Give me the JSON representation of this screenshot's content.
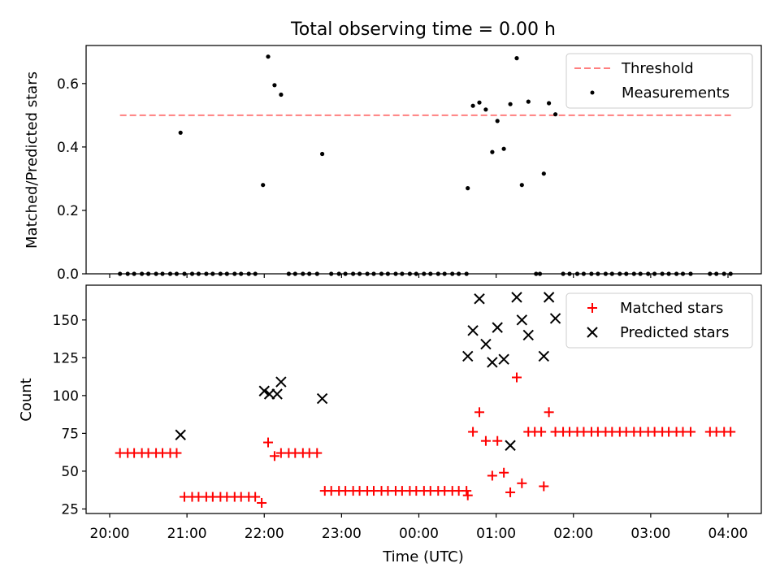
{
  "chart_data": [
    {
      "type": "scatter",
      "title": "Total observing time = 0.00 h",
      "ylabel": "Matched/Predicted stars",
      "xlabel": "",
      "ylim": [
        0.0,
        0.72
      ],
      "yticks": [
        "0.0",
        "0.2",
        "0.4",
        "0.6"
      ],
      "grid": false,
      "legend_position": "top-right",
      "threshold": {
        "name": "Threshold",
        "value": 0.5,
        "x_range": [
          "20:08",
          "04:03"
        ],
        "color": "#ff7f7f"
      },
      "series": [
        {
          "name": "Measurements",
          "color": "#000000",
          "points": [
            [
              "20:08",
              0
            ],
            [
              "20:14",
              0
            ],
            [
              "20:19",
              0
            ],
            [
              "20:25",
              0
            ],
            [
              "20:30",
              0
            ],
            [
              "20:36",
              0
            ],
            [
              "20:41",
              0
            ],
            [
              "20:47",
              0
            ],
            [
              "20:52",
              0
            ],
            [
              "20:58",
              0
            ],
            [
              "20:55",
              0.445
            ],
            [
              "21:04",
              0
            ],
            [
              "21:09",
              0
            ],
            [
              "21:15",
              0
            ],
            [
              "21:20",
              0
            ],
            [
              "21:26",
              0
            ],
            [
              "21:31",
              0
            ],
            [
              "21:37",
              0
            ],
            [
              "21:42",
              0
            ],
            [
              "21:48",
              0
            ],
            [
              "21:53",
              0
            ],
            [
              "21:59",
              0.28
            ],
            [
              "22:03",
              0.685
            ],
            [
              "22:08",
              0.595
            ],
            [
              "22:13",
              0.565
            ],
            [
              "22:19",
              0
            ],
            [
              "22:24",
              0
            ],
            [
              "22:30",
              0
            ],
            [
              "22:35",
              0
            ],
            [
              "22:41",
              0
            ],
            [
              "22:45",
              0.378
            ],
            [
              "22:52",
              0
            ],
            [
              "22:58",
              0
            ],
            [
              "23:03",
              0
            ],
            [
              "23:09",
              0
            ],
            [
              "23:14",
              0
            ],
            [
              "23:20",
              0
            ],
            [
              "23:25",
              0
            ],
            [
              "23:31",
              0
            ],
            [
              "23:36",
              0
            ],
            [
              "23:42",
              0
            ],
            [
              "23:47",
              0
            ],
            [
              "23:53",
              0
            ],
            [
              "23:58",
              0
            ],
            [
              "00:04",
              0
            ],
            [
              "00:09",
              0
            ],
            [
              "00:15",
              0
            ],
            [
              "00:20",
              0
            ],
            [
              "00:26",
              0
            ],
            [
              "00:31",
              0
            ],
            [
              "00:37",
              0
            ],
            [
              "00:38",
              0.27
            ],
            [
              "00:42",
              0.53
            ],
            [
              "00:47",
              0.54
            ],
            [
              "00:52",
              0.518
            ],
            [
              "00:57",
              0.384
            ],
            [
              "01:01",
              0.482
            ],
            [
              "01:06",
              0.394
            ],
            [
              "01:11",
              0.535
            ],
            [
              "01:16",
              0.68
            ],
            [
              "01:20",
              0.28
            ],
            [
              "01:25",
              0.543
            ],
            [
              "01:31",
              0
            ],
            [
              "01:34",
              0
            ],
            [
              "01:37",
              0.316
            ],
            [
              "01:41",
              0.538
            ],
            [
              "01:46",
              0.503
            ],
            [
              "01:52",
              0
            ],
            [
              "01:57",
              0
            ],
            [
              "02:03",
              0
            ],
            [
              "02:08",
              0
            ],
            [
              "02:14",
              0
            ],
            [
              "02:19",
              0
            ],
            [
              "02:25",
              0
            ],
            [
              "02:30",
              0
            ],
            [
              "02:36",
              0
            ],
            [
              "02:41",
              0
            ],
            [
              "02:47",
              0
            ],
            [
              "02:52",
              0
            ],
            [
              "02:58",
              0
            ],
            [
              "03:03",
              0
            ],
            [
              "03:09",
              0
            ],
            [
              "03:14",
              0
            ],
            [
              "03:20",
              0
            ],
            [
              "03:25",
              0
            ],
            [
              "03:31",
              0
            ],
            [
              "03:46",
              0
            ],
            [
              "03:51",
              0
            ],
            [
              "03:57",
              0
            ],
            [
              "04:02",
              0
            ]
          ]
        }
      ]
    },
    {
      "type": "scatter",
      "title": "",
      "ylabel": "Count",
      "xlabel": "Time (UTC)",
      "ylim": [
        22,
        173
      ],
      "yticks": [
        "25",
        "50",
        "75",
        "100",
        "125",
        "150"
      ],
      "xticks": [
        "20:00",
        "21:00",
        "22:00",
        "23:00",
        "00:00",
        "01:00",
        "02:00",
        "03:00",
        "04:00"
      ],
      "grid": false,
      "legend_position": "top-right",
      "series": [
        {
          "name": "Matched stars",
          "marker": "+",
          "color": "#ff0000",
          "points": [
            [
              "20:08",
              62
            ],
            [
              "20:14",
              62
            ],
            [
              "20:19",
              62
            ],
            [
              "20:25",
              62
            ],
            [
              "20:30",
              62
            ],
            [
              "20:36",
              62
            ],
            [
              "20:41",
              62
            ],
            [
              "20:47",
              62
            ],
            [
              "20:52",
              62
            ],
            [
              "20:58",
              33
            ],
            [
              "21:04",
              33
            ],
            [
              "21:09",
              33
            ],
            [
              "21:15",
              33
            ],
            [
              "21:20",
              33
            ],
            [
              "21:26",
              33
            ],
            [
              "21:31",
              33
            ],
            [
              "21:37",
              33
            ],
            [
              "21:42",
              33
            ],
            [
              "21:48",
              33
            ],
            [
              "21:53",
              33
            ],
            [
              "21:58",
              29
            ],
            [
              "22:03",
              69
            ],
            [
              "22:08",
              60
            ],
            [
              "22:13",
              62
            ],
            [
              "22:19",
              62
            ],
            [
              "22:24",
              62
            ],
            [
              "22:30",
              62
            ],
            [
              "22:35",
              62
            ],
            [
              "22:41",
              62
            ],
            [
              "22:47",
              37
            ],
            [
              "22:52",
              37
            ],
            [
              "22:58",
              37
            ],
            [
              "23:03",
              37
            ],
            [
              "23:09",
              37
            ],
            [
              "23:14",
              37
            ],
            [
              "23:20",
              37
            ],
            [
              "23:25",
              37
            ],
            [
              "23:31",
              37
            ],
            [
              "23:36",
              37
            ],
            [
              "23:42",
              37
            ],
            [
              "23:47",
              37
            ],
            [
              "23:53",
              37
            ],
            [
              "23:58",
              37
            ],
            [
              "00:04",
              37
            ],
            [
              "00:09",
              37
            ],
            [
              "00:15",
              37
            ],
            [
              "00:20",
              37
            ],
            [
              "00:26",
              37
            ],
            [
              "00:31",
              37
            ],
            [
              "00:37",
              37
            ],
            [
              "00:38",
              34
            ],
            [
              "00:42",
              76
            ],
            [
              "00:47",
              89
            ],
            [
              "00:52",
              70
            ],
            [
              "00:57",
              47
            ],
            [
              "01:01",
              70
            ],
            [
              "01:06",
              49
            ],
            [
              "01:11",
              36
            ],
            [
              "01:16",
              112
            ],
            [
              "01:20",
              42
            ],
            [
              "01:25",
              76
            ],
            [
              "01:30",
              76
            ],
            [
              "01:35",
              76
            ],
            [
              "01:41",
              89
            ],
            [
              "01:37",
              40
            ],
            [
              "01:46",
              76
            ],
            [
              "01:52",
              76
            ],
            [
              "01:57",
              76
            ],
            [
              "02:03",
              76
            ],
            [
              "02:08",
              76
            ],
            [
              "02:14",
              76
            ],
            [
              "02:19",
              76
            ],
            [
              "02:25",
              76
            ],
            [
              "02:30",
              76
            ],
            [
              "02:36",
              76
            ],
            [
              "02:41",
              76
            ],
            [
              "02:47",
              76
            ],
            [
              "02:52",
              76
            ],
            [
              "02:58",
              76
            ],
            [
              "03:03",
              76
            ],
            [
              "03:09",
              76
            ],
            [
              "03:14",
              76
            ],
            [
              "03:20",
              76
            ],
            [
              "03:25",
              76
            ],
            [
              "03:31",
              76
            ],
            [
              "03:46",
              76
            ],
            [
              "03:51",
              76
            ],
            [
              "03:57",
              76
            ],
            [
              "04:02",
              76
            ]
          ]
        },
        {
          "name": "Predicted stars",
          "marker": "x",
          "color": "#000000",
          "points": [
            [
              "20:55",
              74
            ],
            [
              "22:00",
              103
            ],
            [
              "22:04",
              101
            ],
            [
              "22:10",
              101
            ],
            [
              "22:13",
              109
            ],
            [
              "22:45",
              98
            ],
            [
              "00:38",
              126
            ],
            [
              "00:42",
              143
            ],
            [
              "00:47",
              164
            ],
            [
              "00:52",
              134
            ],
            [
              "00:57",
              122
            ],
            [
              "01:01",
              145
            ],
            [
              "01:06",
              124
            ],
            [
              "01:11",
              67
            ],
            [
              "01:16",
              165
            ],
            [
              "01:20",
              150
            ],
            [
              "01:25",
              140
            ],
            [
              "01:37",
              126
            ],
            [
              "01:41",
              165
            ],
            [
              "01:46",
              151
            ]
          ]
        }
      ]
    }
  ]
}
